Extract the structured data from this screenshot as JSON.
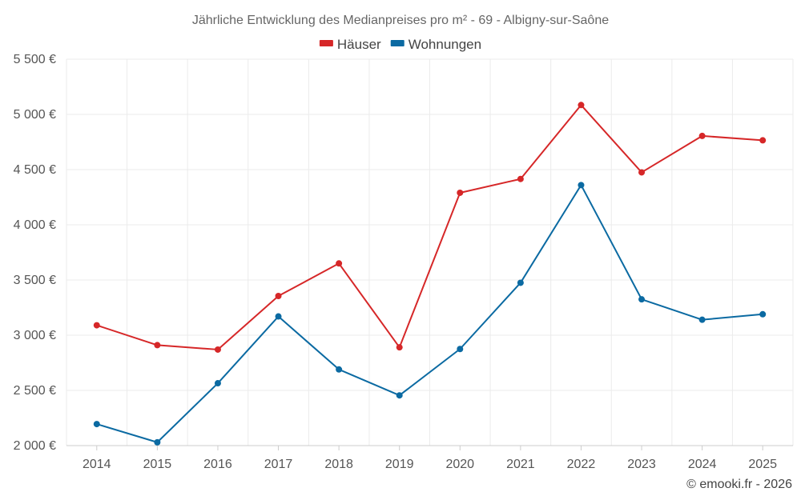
{
  "chart_data": {
    "type": "line",
    "title": "Jährliche Entwicklung des Medianpreises pro m² - 69 - Albigny-sur-Saône",
    "categories": [
      "2014",
      "2015",
      "2016",
      "2017",
      "2018",
      "2019",
      "2020",
      "2021",
      "2022",
      "2023",
      "2024",
      "2025"
    ],
    "series": [
      {
        "name": "Häuser",
        "color": "#d62728",
        "values": [
          3090,
          2910,
          2870,
          3355,
          3650,
          2890,
          4290,
          4415,
          5085,
          4475,
          4805,
          4765
        ]
      },
      {
        "name": "Wohnungen",
        "color": "#0b6aa2",
        "values": [
          2195,
          2030,
          2565,
          3170,
          2690,
          2455,
          2875,
          3475,
          4360,
          3325,
          3140,
          3190
        ]
      }
    ],
    "ylim": [
      2000,
      5500
    ],
    "yticks": [
      2000,
      2500,
      3000,
      3500,
      4000,
      4500,
      5000,
      5500
    ],
    "ytick_labels": [
      "2 000 €",
      "2 500 €",
      "3 000 €",
      "3 500 €",
      "4 000 €",
      "4 500 €",
      "5 000 €",
      "5 500 €"
    ],
    "xlabel": "",
    "ylabel": "",
    "grid": true,
    "legend_position": "top-center"
  },
  "credit": "© emooki.fr - 2026"
}
